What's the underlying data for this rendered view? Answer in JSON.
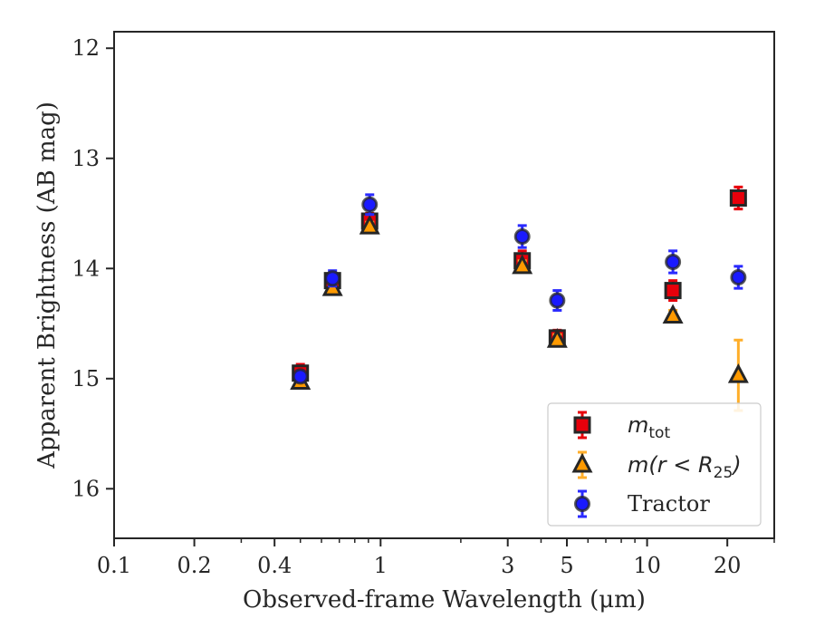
{
  "chart_data": {
    "type": "scatter",
    "xlabel": "Observed-frame Wavelength (μm)",
    "ylabel": "Apparent Brightness (AB mag)",
    "x_scale": "log",
    "xlim": [
      0.1,
      30
    ],
    "ylim": [
      16.45,
      11.85
    ],
    "y_inverted": true,
    "grid": false,
    "x_ticks": [
      {
        "value": 0.1,
        "label": "0.1"
      },
      {
        "value": 0.2,
        "label": "0.2"
      },
      {
        "value": 0.4,
        "label": "0.4"
      },
      {
        "value": 1,
        "label": "1"
      },
      {
        "value": 3,
        "label": "3"
      },
      {
        "value": 5,
        "label": "5"
      },
      {
        "value": 10,
        "label": "10"
      },
      {
        "value": 20,
        "label": "20"
      }
    ],
    "y_ticks": [
      {
        "value": 12,
        "label": "12"
      },
      {
        "value": 13,
        "label": "13"
      },
      {
        "value": 14,
        "label": "14"
      },
      {
        "value": 15,
        "label": "15"
      },
      {
        "value": 16,
        "label": "16"
      }
    ],
    "legend_position": "lower-right",
    "series": [
      {
        "name": "m_tot",
        "legend_main": "m",
        "legend_sub": "tot",
        "legend_tail": "",
        "marker": "square",
        "color": "#e8000b",
        "errcolor": "#e8000b",
        "points": [
          {
            "x": 0.5,
            "y": 14.95,
            "err": 0.08
          },
          {
            "x": 0.66,
            "y": 14.11,
            "err": 0.06
          },
          {
            "x": 0.91,
            "y": 13.57,
            "err": 0.07
          },
          {
            "x": 3.4,
            "y": 13.93,
            "err": 0.09
          },
          {
            "x": 4.6,
            "y": 14.63,
            "err": 0.07
          },
          {
            "x": 12.5,
            "y": 14.2,
            "err": 0.09
          },
          {
            "x": 22.0,
            "y": 13.36,
            "err": 0.1
          }
        ]
      },
      {
        "name": "m(r < R25)",
        "legend_main": "m(r < R",
        "legend_sub": "25",
        "legend_tail": ")",
        "marker": "triangle",
        "color": "#ff9a00",
        "errcolor": "#ffae2a",
        "points": [
          {
            "x": 0.5,
            "y": 15.03,
            "err": 0.04
          },
          {
            "x": 0.66,
            "y": 14.18,
            "err": 0.04
          },
          {
            "x": 0.91,
            "y": 13.62,
            "err": 0.04
          },
          {
            "x": 3.4,
            "y": 13.98,
            "err": 0.05
          },
          {
            "x": 4.6,
            "y": 14.65,
            "err": 0.05
          },
          {
            "x": 12.5,
            "y": 14.43,
            "err": 0.05
          },
          {
            "x": 22.0,
            "y": 14.97,
            "err": 0.32
          }
        ]
      },
      {
        "name": "Tractor",
        "legend_main": "Tractor",
        "legend_sub": "",
        "legend_tail": "",
        "marker": "circle",
        "color": "#1a1aff",
        "errcolor": "#2a2aff",
        "points": [
          {
            "x": 0.5,
            "y": 14.98,
            "err": 0.05
          },
          {
            "x": 0.66,
            "y": 14.09,
            "err": 0.07
          },
          {
            "x": 0.91,
            "y": 13.42,
            "err": 0.09
          },
          {
            "x": 3.4,
            "y": 13.71,
            "err": 0.1
          },
          {
            "x": 4.6,
            "y": 14.29,
            "err": 0.09
          },
          {
            "x": 12.5,
            "y": 13.94,
            "err": 0.1
          },
          {
            "x": 22.0,
            "y": 14.08,
            "err": 0.1
          }
        ]
      }
    ]
  }
}
